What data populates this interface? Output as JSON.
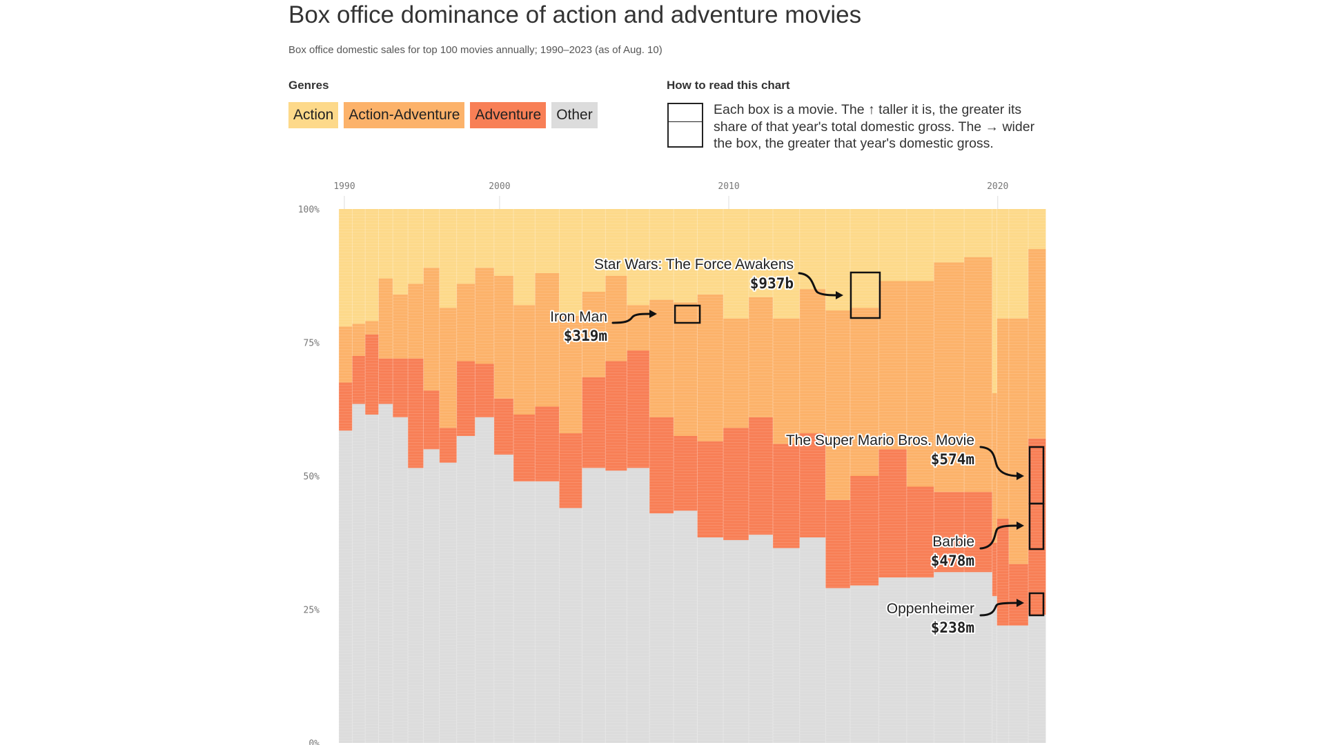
{
  "chart_data": {
    "type": "area",
    "title": "Box office dominance of action and adventure movies",
    "subtitle": "Box office domestic sales for top 100 movies annually; 1990–2023 (as of Aug. 10)",
    "legend_title": "Genres",
    "genres": [
      {
        "name": "Action",
        "color": "#fdd98a"
      },
      {
        "name": "Action-Adventure",
        "color": "#fcb26a"
      },
      {
        "name": "Adventure",
        "color": "#f87f56"
      },
      {
        "name": "Other",
        "color": "#dcdcdc"
      }
    ],
    "how_to_read": {
      "title": "How to read this chart",
      "text": "Each box is a movie. The ↑ taller it is, the greater its share of that year's total domestic gross. The → wider the box, the greater that year's domestic gross."
    },
    "x_ticks": [
      "1990",
      "2000",
      "2010",
      "2020"
    ],
    "y_ticks": [
      "0%",
      "25%",
      "50%",
      "75%",
      "100%"
    ],
    "ylim": [
      0,
      100
    ],
    "years": [
      1990,
      1991,
      1992,
      1993,
      1994,
      1995,
      1996,
      1997,
      1998,
      1999,
      2000,
      2001,
      2002,
      2003,
      2004,
      2005,
      2006,
      2007,
      2008,
      2009,
      2010,
      2011,
      2012,
      2013,
      2014,
      2015,
      2016,
      2017,
      2018,
      2019,
      2020,
      2021,
      2022,
      2023
    ],
    "relative_total_gross": [
      0.62,
      0.6,
      0.62,
      0.66,
      0.7,
      0.72,
      0.74,
      0.8,
      0.85,
      0.88,
      0.9,
      1.0,
      1.12,
      1.06,
      1.08,
      1.0,
      1.04,
      1.12,
      1.1,
      1.2,
      1.18,
      1.12,
      1.24,
      1.2,
      1.14,
      1.32,
      1.3,
      1.26,
      1.4,
      1.3,
      0.22,
      0.55,
      0.9,
      0.8
    ],
    "series": [
      {
        "name": "Other",
        "values": [
          58.5,
          63.5,
          61.5,
          63.5,
          61,
          51.5,
          55,
          52.5,
          57.5,
          61,
          54,
          49,
          49,
          44,
          51.5,
          51,
          51.5,
          43,
          43.5,
          38.5,
          38,
          39,
          36.5,
          38.5,
          29,
          29.5,
          31,
          31,
          32,
          32,
          27.5,
          22,
          22,
          24
        ]
      },
      {
        "name": "Adventure",
        "values": [
          9,
          9,
          15,
          8.5,
          11,
          20.5,
          11,
          6.5,
          14,
          10,
          10.5,
          12.5,
          14,
          14,
          17,
          20.5,
          22,
          18,
          14,
          18,
          21,
          22,
          19.5,
          19.5,
          16.5,
          20.5,
          24,
          17,
          15,
          15,
          10,
          20,
          11.5,
          33
        ]
      },
      {
        "name": "Action-Adventure",
        "values": [
          10.5,
          6,
          2.5,
          15,
          12,
          14,
          23,
          22.5,
          14.5,
          18,
          23,
          20.5,
          25,
          22,
          16,
          16,
          8.5,
          22,
          25,
          27.5,
          20.5,
          22.5,
          23.5,
          27,
          35.5,
          31.5,
          31.5,
          38.5,
          43,
          44,
          28,
          37.5,
          46,
          35.5
        ]
      },
      {
        "name": "Action",
        "values": [
          22,
          21.5,
          21,
          13,
          16,
          14,
          11,
          18.5,
          14,
          11,
          12.5,
          18,
          12,
          20,
          15.5,
          12.5,
          18,
          17,
          17.5,
          16,
          20.5,
          16.5,
          20.5,
          15,
          19,
          18.5,
          13.5,
          13.5,
          10,
          9,
          34.5,
          20.5,
          20.5,
          7.5
        ]
      }
    ],
    "annotations": [
      {
        "name": "Star Wars: The Force Awakens",
        "value": "$937b",
        "year": 2015,
        "genre": "Action-Adventure"
      },
      {
        "name": "Iron Man",
        "value": "$319m",
        "year": 2008,
        "genre": "Action-Adventure"
      },
      {
        "name": "The Super Mario Bros. Movie",
        "value": "$574m",
        "year": 2023,
        "genre": "Adventure"
      },
      {
        "name": "Barbie",
        "value": "$478m",
        "year": 2023,
        "genre": "Adventure"
      },
      {
        "name": "Oppenheimer",
        "value": "$238m",
        "year": 2023,
        "genre": "Other"
      }
    ]
  }
}
